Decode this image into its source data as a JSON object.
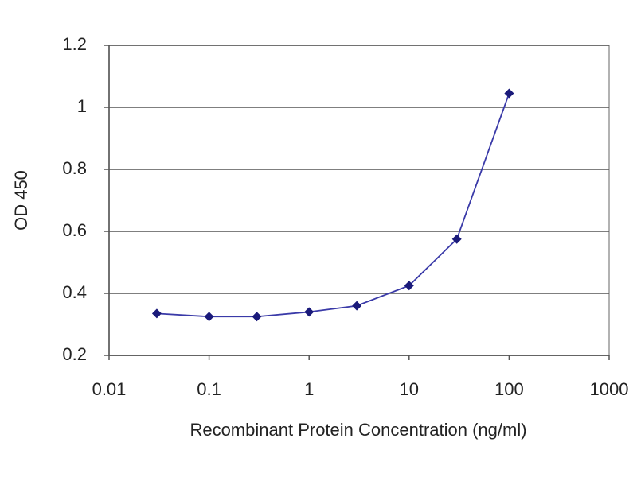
{
  "chart_data": {
    "type": "line",
    "xlabel": "Recombinant Protein Concentration (ng/ml)",
    "ylabel": "OD 450",
    "x": [
      0.03,
      0.1,
      0.3,
      1,
      3,
      10,
      30,
      100
    ],
    "series": [
      {
        "color": "#1a1a7a",
        "values": [
          0.335,
          0.325,
          0.325,
          0.34,
          0.36,
          0.425,
          0.575,
          1.045
        ]
      }
    ],
    "xscale": "log",
    "xlim": [
      0.01,
      1000
    ],
    "xticks": [
      0.01,
      0.1,
      1,
      10,
      100,
      1000
    ],
    "ylim": [
      0.2,
      1.2
    ],
    "yticks": [
      0.2,
      0.4,
      0.6,
      0.8,
      1,
      1.2
    ],
    "grid": true
  }
}
